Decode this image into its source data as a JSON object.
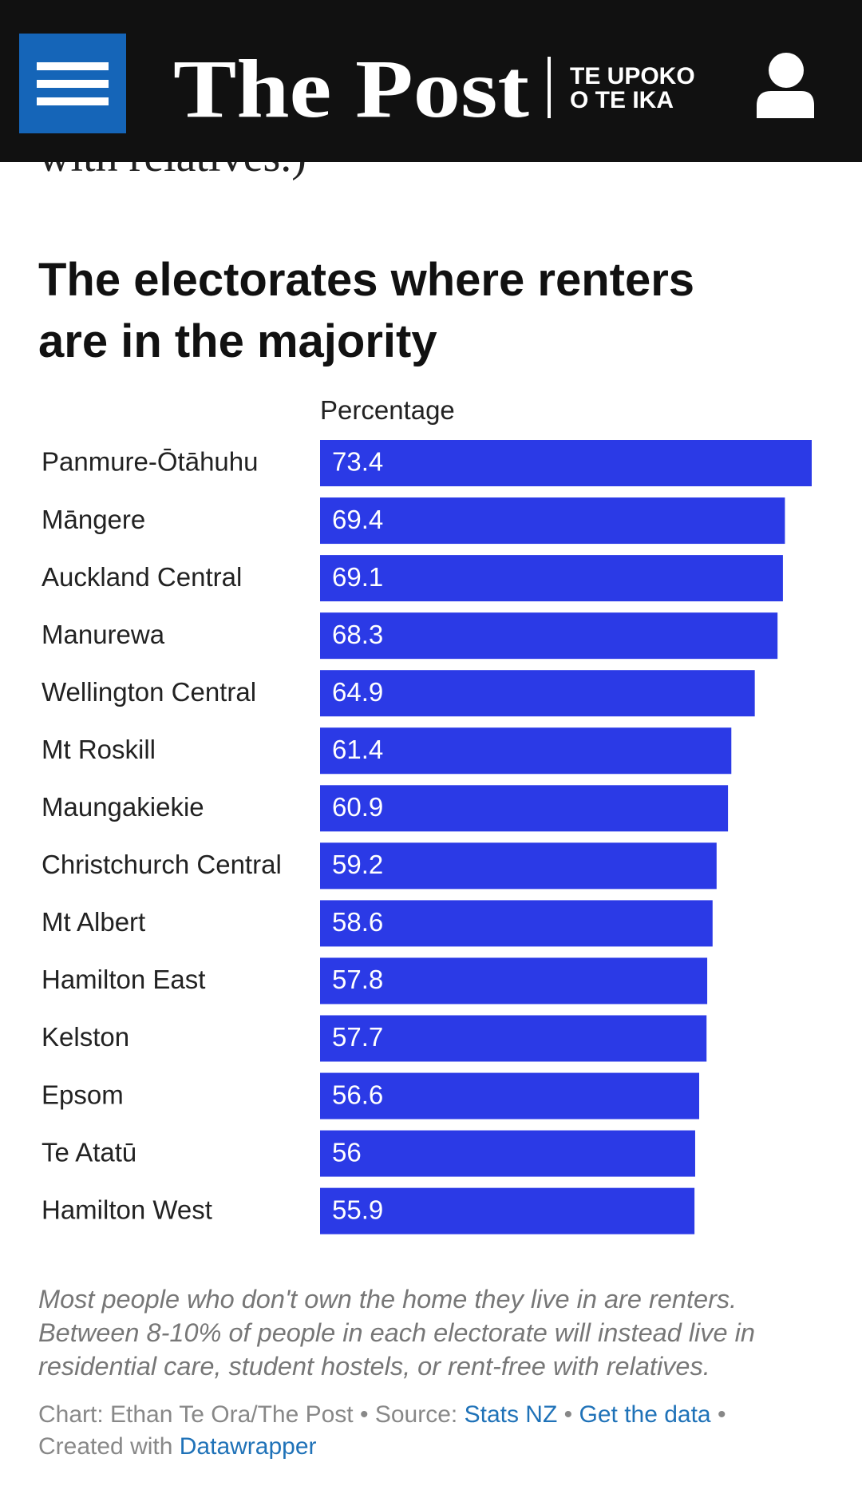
{
  "header": {
    "logo": "The Post",
    "tagline": [
      "TE UPOKO",
      "O TE IKA"
    ]
  },
  "previous_text": "with relatives.)",
  "chart_data": {
    "type": "bar",
    "orientation": "horizontal",
    "title": [
      "The electorates where renters",
      "are in the majority"
    ],
    "value_header": "Percentage",
    "color": "#2b3ae6",
    "categories": [
      "Panmure-Ōtāhuhu",
      "Māngere",
      "Auckland Central",
      "Manurewa",
      "Wellington Central",
      "Mt Roskill",
      "Maungakiekie",
      "Christchurch Central",
      "Mt Albert",
      "Hamilton East",
      "Kelston",
      "Epsom",
      "Te Atatū",
      "Hamilton West"
    ],
    "values": [
      73.4,
      69.4,
      69.1,
      68.3,
      64.9,
      61.4,
      60.9,
      59.2,
      58.6,
      57.8,
      57.7,
      56.6,
      56,
      55.9
    ],
    "note": "Most people who don't own the home they live in are renters. Between 8-10% of people in each electorate will instead live in residential care, student hostels, or rent-free with relatives.",
    "credits": {
      "chart": "Chart: Ethan Te Ora/The Post",
      "separator": "•",
      "source_label": "Source:",
      "source": "Stats NZ",
      "data_link": "Get the data",
      "created_label": "Created with",
      "tool": "Datawrapper"
    }
  }
}
